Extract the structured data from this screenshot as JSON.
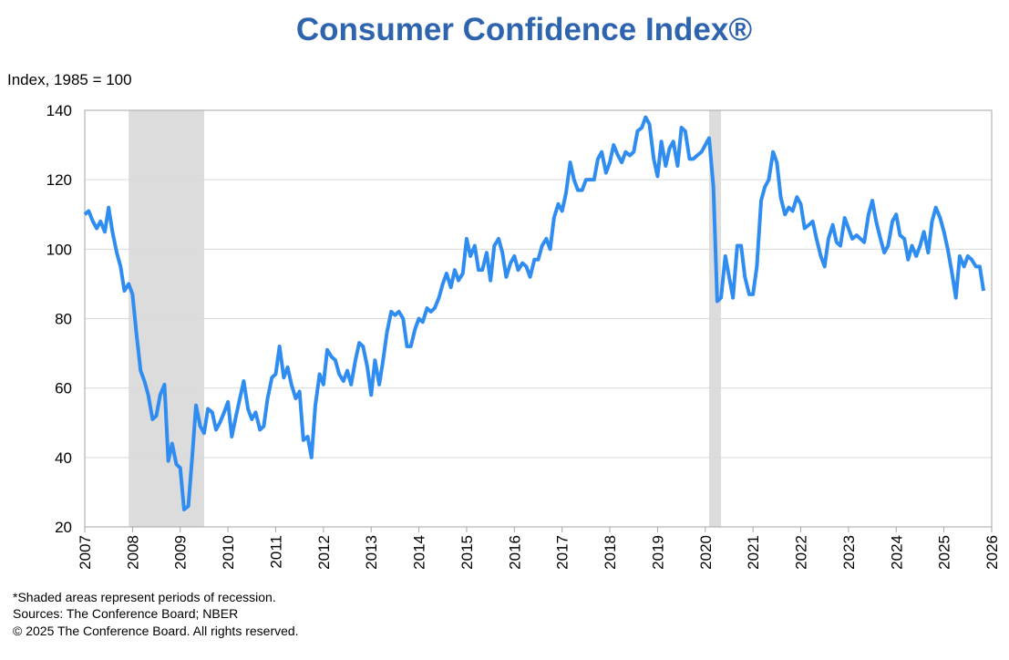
{
  "chart_data": {
    "type": "line",
    "title": "Consumer Confidence Index®",
    "y_label": "Index, 1985 = 100",
    "notes": [
      "*Shaded areas represent periods of recession.",
      "Sources:  The Conference Board;  NBER",
      "© 2025 The Conference Board. All rights reserved."
    ],
    "xlim": [
      2007,
      2026
    ],
    "xticks": [
      2007,
      2008,
      2009,
      2010,
      2011,
      2012,
      2013,
      2014,
      2015,
      2016,
      2017,
      2018,
      2019,
      2020,
      2021,
      2022,
      2023,
      2024,
      2025,
      2026
    ],
    "ylim": [
      20,
      140
    ],
    "yticks": [
      20,
      40,
      60,
      80,
      100,
      120,
      140
    ],
    "grid": true,
    "recession_color": "#dcdcdc",
    "recessions": [
      [
        2007.92,
        2009.5
      ],
      [
        2020.08,
        2020.33
      ]
    ],
    "x": [
      2007,
      2007.08,
      2007.17,
      2007.25,
      2007.33,
      2007.42,
      2007.5,
      2007.58,
      2007.67,
      2007.75,
      2007.83,
      2007.92,
      2008,
      2008.08,
      2008.17,
      2008.25,
      2008.33,
      2008.42,
      2008.5,
      2008.58,
      2008.67,
      2008.75,
      2008.83,
      2008.92,
      2009,
      2009.08,
      2009.17,
      2009.25,
      2009.33,
      2009.42,
      2009.5,
      2009.58,
      2009.67,
      2009.75,
      2009.83,
      2009.92,
      2010,
      2010.08,
      2010.17,
      2010.25,
      2010.33,
      2010.42,
      2010.5,
      2010.58,
      2010.67,
      2010.75,
      2010.83,
      2010.92,
      2011,
      2011.08,
      2011.17,
      2011.25,
      2011.33,
      2011.42,
      2011.5,
      2011.58,
      2011.67,
      2011.75,
      2011.83,
      2011.92,
      2012,
      2012.08,
      2012.17,
      2012.25,
      2012.33,
      2012.42,
      2012.5,
      2012.58,
      2012.67,
      2012.75,
      2012.83,
      2012.92,
      2013,
      2013.08,
      2013.17,
      2013.25,
      2013.33,
      2013.42,
      2013.5,
      2013.58,
      2013.67,
      2013.75,
      2013.83,
      2013.92,
      2014,
      2014.08,
      2014.17,
      2014.25,
      2014.33,
      2014.42,
      2014.5,
      2014.58,
      2014.67,
      2014.75,
      2014.83,
      2014.92,
      2015,
      2015.08,
      2015.17,
      2015.25,
      2015.33,
      2015.42,
      2015.5,
      2015.58,
      2015.67,
      2015.75,
      2015.83,
      2015.92,
      2016,
      2016.08,
      2016.17,
      2016.25,
      2016.33,
      2016.42,
      2016.5,
      2016.58,
      2016.67,
      2016.75,
      2016.83,
      2016.92,
      2017,
      2017.08,
      2017.17,
      2017.25,
      2017.33,
      2017.42,
      2017.5,
      2017.58,
      2017.67,
      2017.75,
      2017.83,
      2017.92,
      2018,
      2018.08,
      2018.17,
      2018.25,
      2018.33,
      2018.42,
      2018.5,
      2018.58,
      2018.67,
      2018.75,
      2018.83,
      2018.92,
      2019,
      2019.08,
      2019.17,
      2019.25,
      2019.33,
      2019.42,
      2019.5,
      2019.58,
      2019.67,
      2019.75,
      2019.83,
      2019.92,
      2020,
      2020.08,
      2020.17,
      2020.25,
      2020.33,
      2020.42,
      2020.5,
      2020.58,
      2020.67,
      2020.75,
      2020.83,
      2020.92,
      2021,
      2021.08,
      2021.17,
      2021.25,
      2021.33,
      2021.42,
      2021.5,
      2021.58,
      2021.67,
      2021.75,
      2021.83,
      2021.92,
      2022,
      2022.08,
      2022.17,
      2022.25,
      2022.33,
      2022.42,
      2022.5,
      2022.58,
      2022.67,
      2022.75,
      2022.83,
      2022.92,
      2023,
      2023.08,
      2023.17,
      2023.25,
      2023.33,
      2023.42,
      2023.5,
      2023.58,
      2023.67,
      2023.75,
      2023.83,
      2023.92,
      2024,
      2024.08,
      2024.17,
      2024.25,
      2024.33,
      2024.42,
      2024.5,
      2024.58,
      2024.67,
      2024.75,
      2024.83,
      2024.92,
      2025,
      2025.08,
      2025.17,
      2025.25,
      2025.33,
      2025.42,
      2025.5,
      2025.58,
      2025.67,
      2025.75,
      2025.83
    ],
    "series": [
      {
        "color": "#2f8cf0",
        "values": [
          110,
          111,
          108,
          106,
          108,
          105,
          112,
          105,
          99,
          95,
          88,
          90,
          87,
          76,
          65,
          62,
          58,
          51,
          52,
          58,
          61,
          39,
          44,
          38,
          37,
          25,
          26,
          40,
          55,
          49,
          47,
          54,
          53,
          48,
          50,
          53,
          56,
          46,
          52,
          57,
          62,
          54,
          51,
          53,
          48,
          49,
          57,
          63,
          64,
          72,
          63,
          66,
          61,
          57,
          59,
          45,
          46,
          40,
          55,
          64,
          61,
          71,
          69,
          68,
          64,
          62,
          65,
          61,
          68,
          73,
          72,
          66,
          58,
          68,
          61,
          68,
          76,
          82,
          81,
          82,
          80,
          72,
          72,
          77,
          80,
          79,
          83,
          82,
          83,
          86,
          90,
          93,
          89,
          94,
          91,
          93,
          103,
          98,
          101,
          94,
          94,
          99,
          91,
          101,
          103,
          99,
          92,
          96,
          98,
          94,
          96,
          95,
          92,
          97,
          97,
          101,
          103,
          100,
          109,
          113,
          111,
          116,
          125,
          120,
          117,
          117,
          120,
          120,
          120,
          126,
          128,
          122,
          125,
          130,
          127,
          125,
          128,
          127,
          128,
          134,
          135,
          138,
          136,
          126,
          121,
          131,
          124,
          129,
          131,
          124,
          135,
          134,
          126,
          126,
          127,
          128,
          130,
          132,
          118,
          85,
          86,
          98,
          92,
          86,
          101,
          101,
          92,
          87,
          87,
          95,
          114,
          118,
          120,
          128,
          125,
          115,
          110,
          112,
          111,
          115,
          113,
          106,
          107,
          108,
          103,
          98,
          95,
          103,
          107,
          102,
          101,
          109,
          106,
          103,
          104,
          103,
          102,
          110,
          114,
          108,
          103,
          99,
          101,
          108,
          110,
          104,
          103,
          97,
          101,
          98,
          101,
          105,
          99,
          108,
          112,
          109,
          105,
          100,
          93,
          86,
          98,
          95,
          98,
          97,
          95,
          95,
          88
        ]
      }
    ]
  }
}
